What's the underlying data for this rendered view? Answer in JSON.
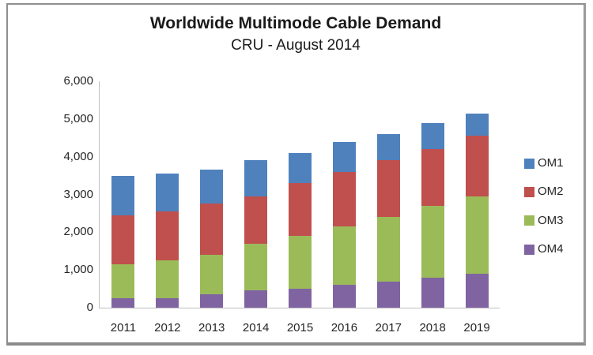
{
  "title": "Worldwide Multimode Cable Demand",
  "subtitle": "CRU - August 2014",
  "chart_data": {
    "type": "bar",
    "stacked": true,
    "title": "Worldwide Multimode Cable Demand",
    "subtitle": "CRU - August 2014",
    "categories": [
      "2011",
      "2012",
      "2013",
      "2014",
      "2015",
      "2016",
      "2017",
      "2018",
      "2019"
    ],
    "series": [
      {
        "name": "OM4",
        "color": "#8064A2",
        "values": [
          250,
          250,
          350,
          450,
          500,
          600,
          700,
          800,
          900
        ]
      },
      {
        "name": "OM3",
        "color": "#9BBB59",
        "values": [
          900,
          1000,
          1050,
          1250,
          1400,
          1550,
          1700,
          1900,
          2050
        ]
      },
      {
        "name": "OM2",
        "color": "#C0504D",
        "values": [
          1300,
          1300,
          1350,
          1250,
          1400,
          1450,
          1500,
          1500,
          1600
        ]
      },
      {
        "name": "OM1",
        "color": "#4F81BD",
        "values": [
          1050,
          1000,
          900,
          950,
          800,
          800,
          700,
          700,
          600
        ]
      }
    ],
    "totals": [
      3500,
      3550,
      3650,
      3900,
      4100,
      4400,
      4600,
      4900,
      5150
    ],
    "legend": {
      "position": "right",
      "order": [
        "OM1",
        "OM2",
        "OM3",
        "OM4"
      ]
    },
    "xlabel": "",
    "ylabel": "",
    "ylim": [
      0,
      6000
    ],
    "ytick_step": 1000,
    "ytick_labels": [
      "0",
      "1,000",
      "2,000",
      "3,000",
      "4,000",
      "5,000",
      "6,000"
    ],
    "grid": false,
    "axis_color": "#bfbfbf",
    "text_color": "#262626"
  }
}
